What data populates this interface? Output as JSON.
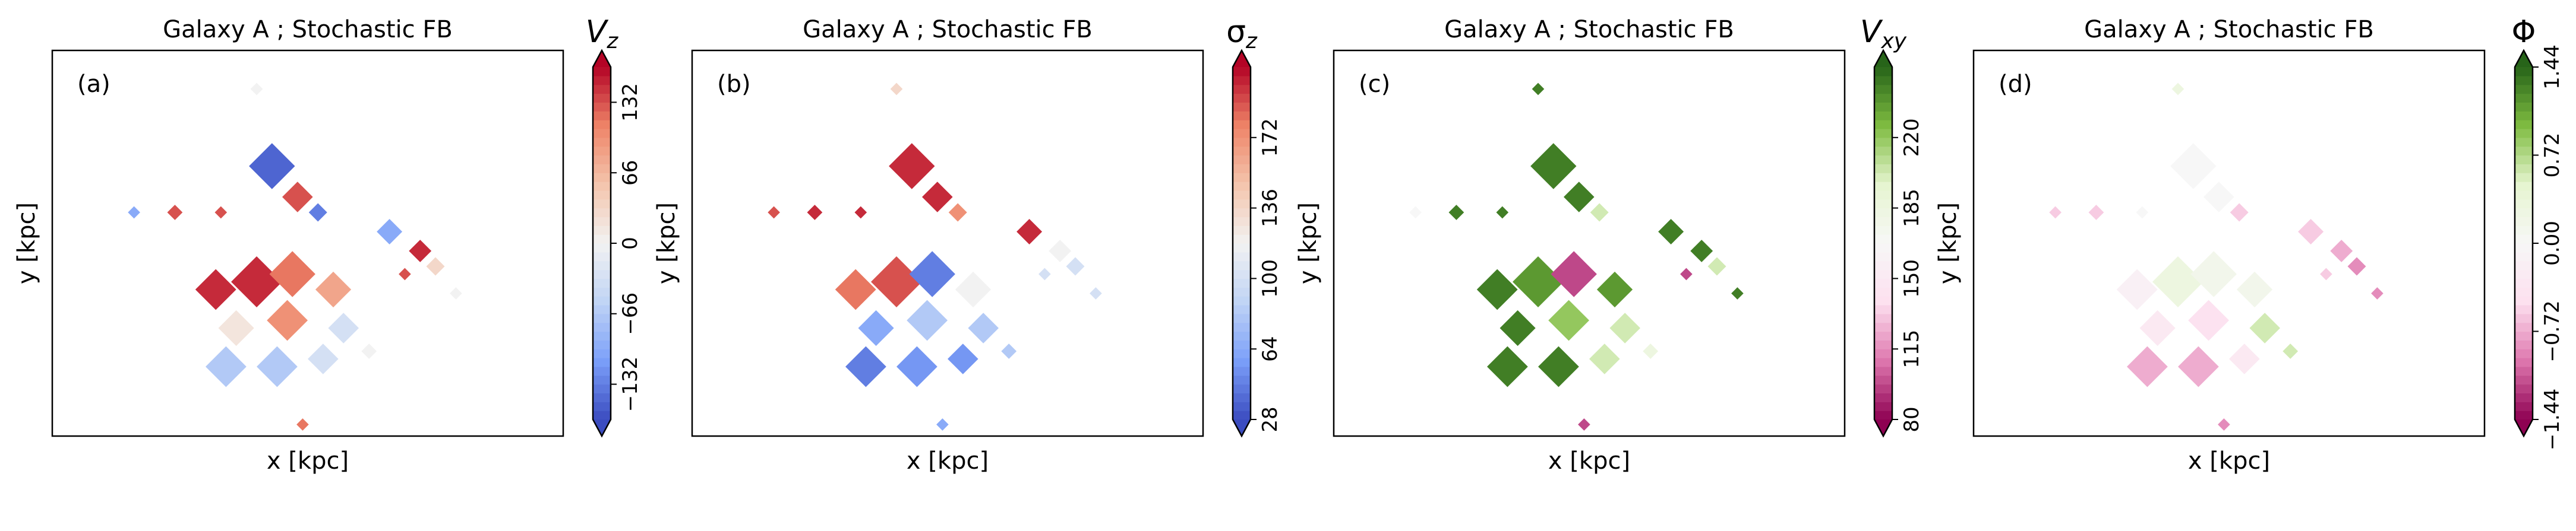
{
  "chart_data": [
    {
      "type": "heatmap",
      "panel_label": "(a)",
      "title": "Galaxy A ; Stochastic FB",
      "xlabel": "x [kpc]",
      "ylabel": "y [kpc]",
      "colorbar": {
        "label": "V_z",
        "label_main": "V",
        "label_sub": "z",
        "label_is_greek": false,
        "cmap": "coolwarm",
        "colors": [
          "#3b4cc0",
          "#7b9ff9",
          "#c0d4f5",
          "#f2f2f2",
          "#f4c5ad",
          "#ee8468",
          "#b40426"
        ],
        "range": [
          -165,
          165
        ],
        "ticks": [
          -132,
          -66,
          0,
          66,
          132
        ],
        "tick_labels": [
          "−132",
          "−66",
          "0",
          "66",
          "132"
        ],
        "extend": "both"
      }
    },
    {
      "type": "heatmap",
      "panel_label": "(b)",
      "title": "Galaxy A ; Stochastic FB",
      "xlabel": "x [kpc]",
      "ylabel": "y [kpc]",
      "colorbar": {
        "label": "σ_z",
        "label_main": "σ",
        "label_sub": "z",
        "label_is_greek": true,
        "cmap": "coolwarm",
        "colors": [
          "#3b4cc0",
          "#7b9ff9",
          "#c0d4f5",
          "#f2f2f2",
          "#f4c5ad",
          "#ee8468",
          "#b40426"
        ],
        "range": [
          28,
          208
        ],
        "ticks": [
          28,
          64,
          100,
          136,
          172
        ],
        "tick_labels": [
          "28",
          "64",
          "100",
          "136",
          "172"
        ],
        "extend": "both"
      }
    },
    {
      "type": "heatmap",
      "panel_label": "(c)",
      "title": "Galaxy A ; Stochastic FB",
      "xlabel": "x [kpc]",
      "ylabel": "y [kpc]",
      "colorbar": {
        "label": "V_xy",
        "label_main": "V",
        "label_sub": "xy",
        "label_is_greek": false,
        "cmap": "PiYG",
        "colors": [
          "#8e0152",
          "#de77ae",
          "#fde0ef",
          "#f7f7f7",
          "#e6f5d0",
          "#7fbc41",
          "#276419"
        ],
        "range": [
          80,
          255
        ],
        "ticks": [
          80,
          115,
          150,
          185,
          220
        ],
        "tick_labels": [
          "80",
          "115",
          "150",
          "185",
          "220"
        ],
        "extend": "both"
      }
    },
    {
      "type": "heatmap",
      "panel_label": "(d)",
      "title": "Galaxy A ; Stochastic FB",
      "xlabel": "x [kpc]",
      "ylabel": "y [kpc]",
      "colorbar": {
        "label": "Φ",
        "label_main": "Φ",
        "label_sub": "",
        "label_is_greek": true,
        "cmap": "PiYG",
        "colors": [
          "#8e0152",
          "#de77ae",
          "#fde0ef",
          "#f7f7f7",
          "#e6f5d0",
          "#7fbc41",
          "#276419"
        ],
        "range": [
          -1.44,
          1.44
        ],
        "ticks": [
          -1.44,
          -0.72,
          0.0,
          0.72,
          1.44
        ],
        "tick_labels": [
          "−1.44",
          "−0.72",
          "0.00",
          "0.72",
          "1.44"
        ],
        "extend": "both"
      }
    }
  ]
}
